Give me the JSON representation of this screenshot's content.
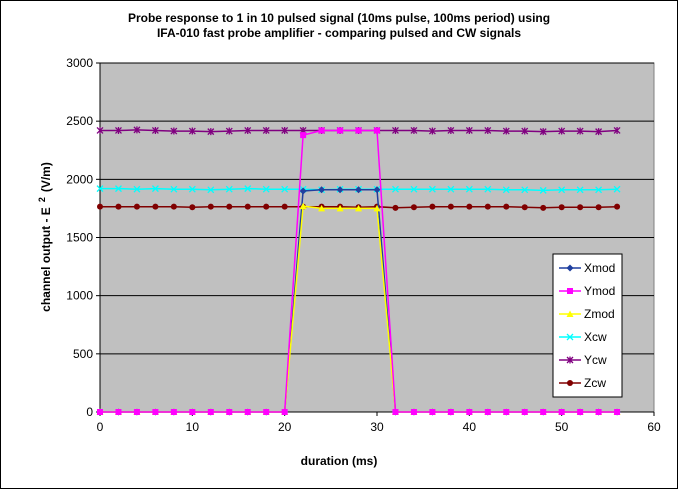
{
  "chart_data": {
    "type": "line",
    "title_lines": [
      "Probe response to 1 in 10 pulsed signal (10ms pulse, 100ms period) using",
      "IFA-010 fast probe amplifier - comparing pulsed and CW signals"
    ],
    "xlabel": "duration (ms)",
    "ylabel_main": "channel output - E",
    "ylabel_sup": "2",
    "ylabel_unit": "(V/m)",
    "xlim": [
      0,
      60
    ],
    "ylim": [
      0,
      3000
    ],
    "xticks": [
      0,
      10,
      20,
      30,
      40,
      50,
      60
    ],
    "yticks": [
      0,
      500,
      1000,
      1500,
      2000,
      2500,
      3000
    ],
    "grid": "horizontal major gridlines",
    "legend_position": "right",
    "colors": {
      "page_background": "#ffffff",
      "plot_background": "#c0c0c0",
      "gridline": "#000000"
    },
    "series": [
      {
        "name": "Xmod",
        "color": "#1f3f9f",
        "marker": "diamond",
        "x": [
          0,
          2,
          4,
          6,
          8,
          10,
          12,
          14,
          16,
          18,
          20,
          22,
          24,
          26,
          28,
          30,
          32,
          34,
          36,
          38,
          40,
          42,
          44,
          46,
          48,
          50,
          52,
          54,
          56
        ],
        "y": [
          0,
          0,
          0,
          0,
          0,
          0,
          0,
          0,
          0,
          0,
          0,
          1900,
          1910,
          1910,
          1910,
          1910,
          0,
          0,
          0,
          0,
          0,
          0,
          0,
          0,
          0,
          0,
          0,
          0,
          0
        ]
      },
      {
        "name": "Ymod",
        "color": "#ff00ff",
        "marker": "square",
        "x": [
          0,
          2,
          4,
          6,
          8,
          10,
          12,
          14,
          16,
          18,
          20,
          22,
          24,
          26,
          28,
          30,
          32,
          34,
          36,
          38,
          40,
          42,
          44,
          46,
          48,
          50,
          52,
          54,
          56
        ],
        "y": [
          0,
          0,
          0,
          0,
          0,
          0,
          0,
          0,
          0,
          0,
          0,
          2380,
          2420,
          2420,
          2420,
          2420,
          0,
          0,
          0,
          0,
          0,
          0,
          0,
          0,
          0,
          0,
          0,
          0,
          0
        ]
      },
      {
        "name": "Zmod",
        "color": "#ffff00",
        "marker": "triangle",
        "x": [
          0,
          2,
          4,
          6,
          8,
          10,
          12,
          14,
          16,
          18,
          20,
          22,
          24,
          26,
          28,
          30,
          32,
          34,
          36,
          38,
          40,
          42,
          44,
          46,
          48,
          50,
          52,
          54,
          56
        ],
        "y": [
          0,
          0,
          0,
          0,
          0,
          0,
          0,
          0,
          0,
          0,
          0,
          1770,
          1750,
          1750,
          1750,
          1750,
          0,
          0,
          0,
          0,
          0,
          0,
          0,
          0,
          0,
          0,
          0,
          0,
          0
        ]
      },
      {
        "name": "Xcw",
        "color": "#00ffff",
        "marker": "x",
        "x": [
          0,
          2,
          4,
          6,
          8,
          10,
          12,
          14,
          16,
          18,
          20,
          22,
          24,
          26,
          28,
          30,
          32,
          34,
          36,
          38,
          40,
          42,
          44,
          46,
          48,
          50,
          52,
          54,
          56
        ],
        "y": [
          1920,
          1920,
          1915,
          1920,
          1915,
          1915,
          1910,
          1915,
          1920,
          1915,
          1915,
          1915,
          1910,
          1915,
          1915,
          1915,
          1915,
          1915,
          1915,
          1915,
          1915,
          1915,
          1910,
          1910,
          1905,
          1910,
          1910,
          1910,
          1915
        ]
      },
      {
        "name": "Ycw",
        "color": "#800080",
        "marker": "asterisk",
        "x": [
          0,
          2,
          4,
          6,
          8,
          10,
          12,
          14,
          16,
          18,
          20,
          22,
          24,
          26,
          28,
          30,
          32,
          34,
          36,
          38,
          40,
          42,
          44,
          46,
          48,
          50,
          52,
          54,
          56
        ],
        "y": [
          2420,
          2420,
          2425,
          2420,
          2415,
          2415,
          2410,
          2415,
          2420,
          2420,
          2420,
          2420,
          2420,
          2420,
          2420,
          2420,
          2420,
          2420,
          2415,
          2420,
          2420,
          2420,
          2415,
          2415,
          2410,
          2415,
          2415,
          2410,
          2420
        ]
      },
      {
        "name": "Zcw",
        "color": "#800000",
        "marker": "circle",
        "x": [
          0,
          2,
          4,
          6,
          8,
          10,
          12,
          14,
          16,
          18,
          20,
          22,
          24,
          26,
          28,
          30,
          32,
          34,
          36,
          38,
          40,
          42,
          44,
          46,
          48,
          50,
          52,
          54,
          56
        ],
        "y": [
          1765,
          1765,
          1765,
          1765,
          1765,
          1760,
          1765,
          1765,
          1765,
          1765,
          1765,
          1765,
          1765,
          1765,
          1760,
          1765,
          1755,
          1760,
          1765,
          1765,
          1765,
          1765,
          1765,
          1760,
          1755,
          1760,
          1760,
          1760,
          1765
        ]
      }
    ]
  }
}
